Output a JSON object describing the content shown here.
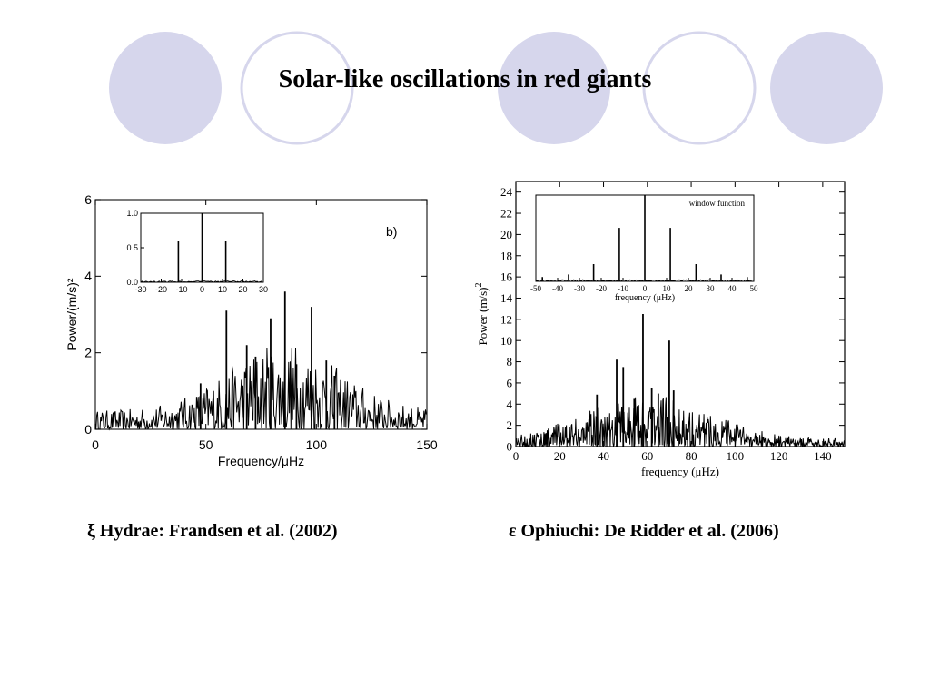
{
  "slide": {
    "title": "Solar-like oscillations in red giants",
    "accent_circle_fill": "#d6d6ec",
    "accent_circle_stroke": "#d6d6ec"
  },
  "captions": {
    "left": "ξ Hydrae: Frandsen et al. (2002)",
    "right": "ε Ophiuchi:  De Ridder et al. (2006)"
  },
  "chart_data": [
    {
      "id": "xi-hydrae",
      "type": "line",
      "panel_label": "b)",
      "xlabel": "Frequency/μHz",
      "ylabel": "Power/(m/s)²",
      "xlim": [
        0,
        150
      ],
      "ylim": [
        0,
        6
      ],
      "xticks": [
        0,
        50,
        100,
        150
      ],
      "yticks": [
        0,
        2,
        4,
        6
      ],
      "peaks": [
        {
          "x": 47.6,
          "y": 1.2
        },
        {
          "x": 59.3,
          "y": 3.1
        },
        {
          "x": 68.5,
          "y": 2.2
        },
        {
          "x": 72.5,
          "y": 1.9
        },
        {
          "x": 79.3,
          "y": 2.9
        },
        {
          "x": 85.8,
          "y": 3.6
        },
        {
          "x": 91.0,
          "y": 1.7
        },
        {
          "x": 97.8,
          "y": 3.2
        },
        {
          "x": 104.5,
          "y": 1.8
        },
        {
          "x": 108.2,
          "y": 1.4
        }
      ],
      "noise_envelope": {
        "center": 85,
        "width": 35,
        "base": 0.35,
        "peak": 1.3
      },
      "inset": {
        "xlim": [
          -30,
          30
        ],
        "ylim": [
          0,
          1.0
        ],
        "xticks": [
          -30,
          -20,
          -10,
          0,
          10,
          20,
          30
        ],
        "yticks": [
          0.0,
          0.5,
          1.0
        ],
        "ytick_labels": [
          "0.0",
          "0.5",
          "1.0"
        ],
        "peaks": [
          {
            "x": -11.6,
            "y": 0.6
          },
          {
            "x": 0,
            "y": 1.0
          },
          {
            "x": 11.6,
            "y": 0.6
          }
        ]
      }
    },
    {
      "id": "eps-ophiuchi",
      "type": "line",
      "xlabel": "frequency (μHz)",
      "ylabel": "Power (m/s)",
      "ylabel_superscript": "2",
      "xlim": [
        0,
        150
      ],
      "ylim": [
        0,
        25
      ],
      "xticks": [
        0,
        20,
        40,
        60,
        80,
        100,
        120,
        140
      ],
      "yticks": [
        0,
        2,
        4,
        6,
        8,
        10,
        12,
        14,
        16,
        18,
        20,
        22,
        24
      ],
      "peaks": [
        {
          "x": 37,
          "y": 4.9
        },
        {
          "x": 46,
          "y": 8.2
        },
        {
          "x": 49,
          "y": 7.5
        },
        {
          "x": 54,
          "y": 4.5
        },
        {
          "x": 58,
          "y": 12.5
        },
        {
          "x": 62,
          "y": 5.5
        },
        {
          "x": 65,
          "y": 5.0
        },
        {
          "x": 70,
          "y": 10.0
        },
        {
          "x": 72,
          "y": 5.3
        }
      ],
      "noise_envelope": {
        "center": 60,
        "width": 40,
        "base": 0.5,
        "peak": 3.0
      },
      "inset": {
        "title": "window function",
        "xlabel": "frequency (μHz)",
        "xlim": [
          -50,
          50
        ],
        "ylim": [
          0,
          1
        ],
        "xticks": [
          -50,
          -40,
          -30,
          -20,
          -10,
          0,
          10,
          20,
          30,
          40,
          50
        ],
        "peaks": [
          {
            "x": -47,
            "y": 0.05
          },
          {
            "x": -35,
            "y": 0.08
          },
          {
            "x": -23.5,
            "y": 0.2
          },
          {
            "x": -11.7,
            "y": 0.62
          },
          {
            "x": 0,
            "y": 1.0
          },
          {
            "x": 11.7,
            "y": 0.62
          },
          {
            "x": 23.5,
            "y": 0.2
          },
          {
            "x": 35,
            "y": 0.08
          },
          {
            "x": 47,
            "y": 0.05
          }
        ]
      }
    }
  ]
}
